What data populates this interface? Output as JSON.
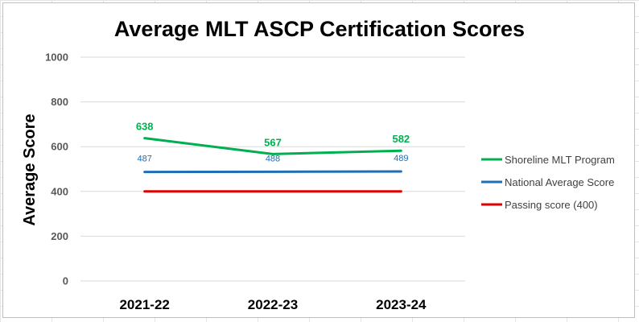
{
  "chart_data": {
    "type": "line",
    "title": "Average MLT ASCP Certification Scores",
    "xlabel": "",
    "ylabel": "Average Score",
    "categories": [
      "2021-22",
      "2022-23",
      "2023-24"
    ],
    "yticks": [
      "0",
      "200",
      "400",
      "600",
      "800",
      "1000"
    ],
    "ylim": [
      0,
      1000
    ],
    "grid": true,
    "legend_position": "right",
    "series": [
      {
        "name": "Shoreline MLT Program",
        "values": [
          638,
          567,
          582
        ],
        "labels": [
          "638",
          "567",
          "582"
        ],
        "color": "#00b050"
      },
      {
        "name": "National Average Score",
        "values": [
          487,
          488,
          489
        ],
        "labels": [
          "487",
          "488",
          "489"
        ],
        "color": "#1f6fb4"
      },
      {
        "name": "Passing score (400)",
        "values": [
          400,
          400,
          400
        ],
        "labels": [],
        "color": "#e00000"
      }
    ]
  }
}
